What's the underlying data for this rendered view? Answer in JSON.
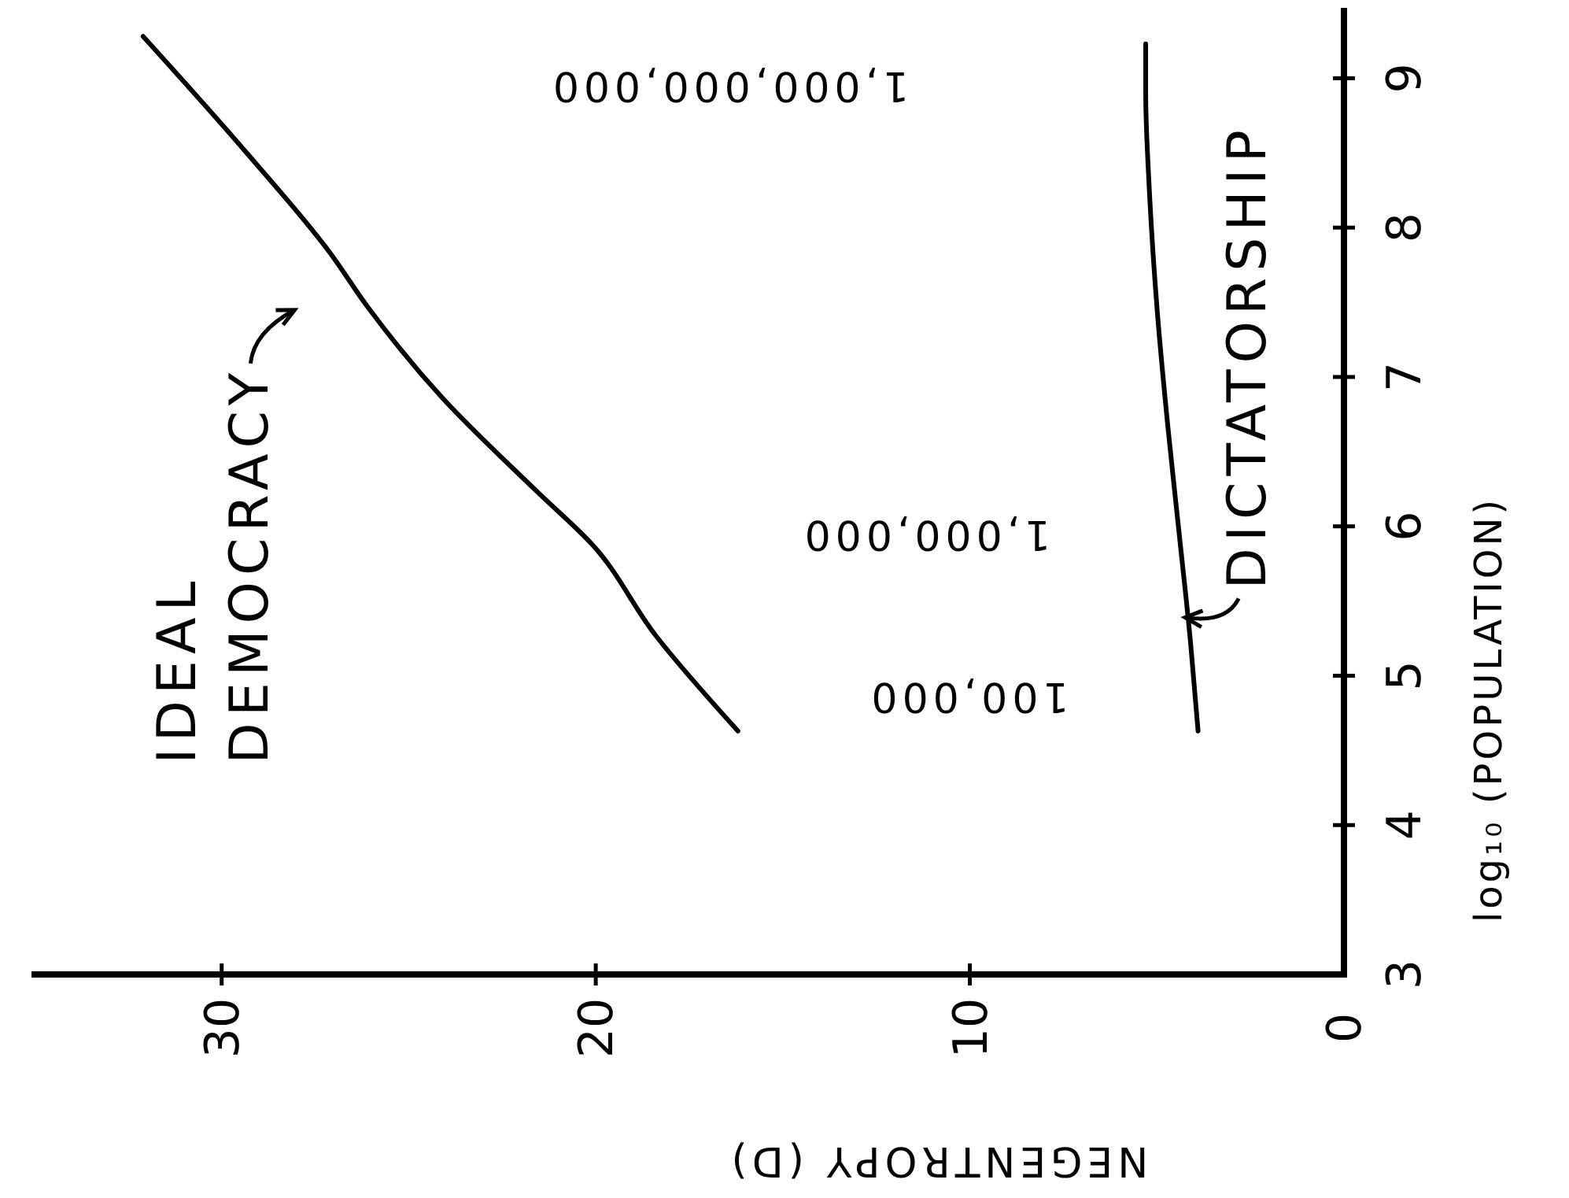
{
  "chart_data": {
    "type": "line",
    "xlabel": "NEGENTROPY (D)",
    "ylabel": "log₁₀ (POPULATION)",
    "xlim": [
      35,
      0
    ],
    "ylim": [
      3,
      9.45
    ],
    "xticks": [
      30,
      20,
      10,
      0
    ],
    "yticks": [
      3,
      4,
      5,
      6,
      7,
      8,
      9
    ],
    "grid": false,
    "marker": "none",
    "line_style": "solid",
    "series": [
      {
        "name": "IDEAL DEMOCRACY",
        "color": "#000000",
        "x": [
          16.2,
          18.4,
          20.1,
          21.6,
          24.1,
          26.1,
          27.1,
          29.4,
          32.1
        ],
        "values": [
          4.63,
          5.27,
          5.88,
          6.24,
          6.86,
          7.47,
          7.83,
          8.52,
          9.28
        ]
      },
      {
        "name": "DICTATORSHIP",
        "color": "#000000",
        "x": [
          3.9,
          4.1,
          4.4,
          4.7,
          5.0,
          5.2,
          5.3,
          5.3
        ],
        "values": [
          4.63,
          5.22,
          5.94,
          6.65,
          7.47,
          8.24,
          8.91,
          9.23
        ]
      }
    ],
    "annotations": [
      "100,000",
      "1,000,000",
      "1,000,000,000"
    ]
  }
}
